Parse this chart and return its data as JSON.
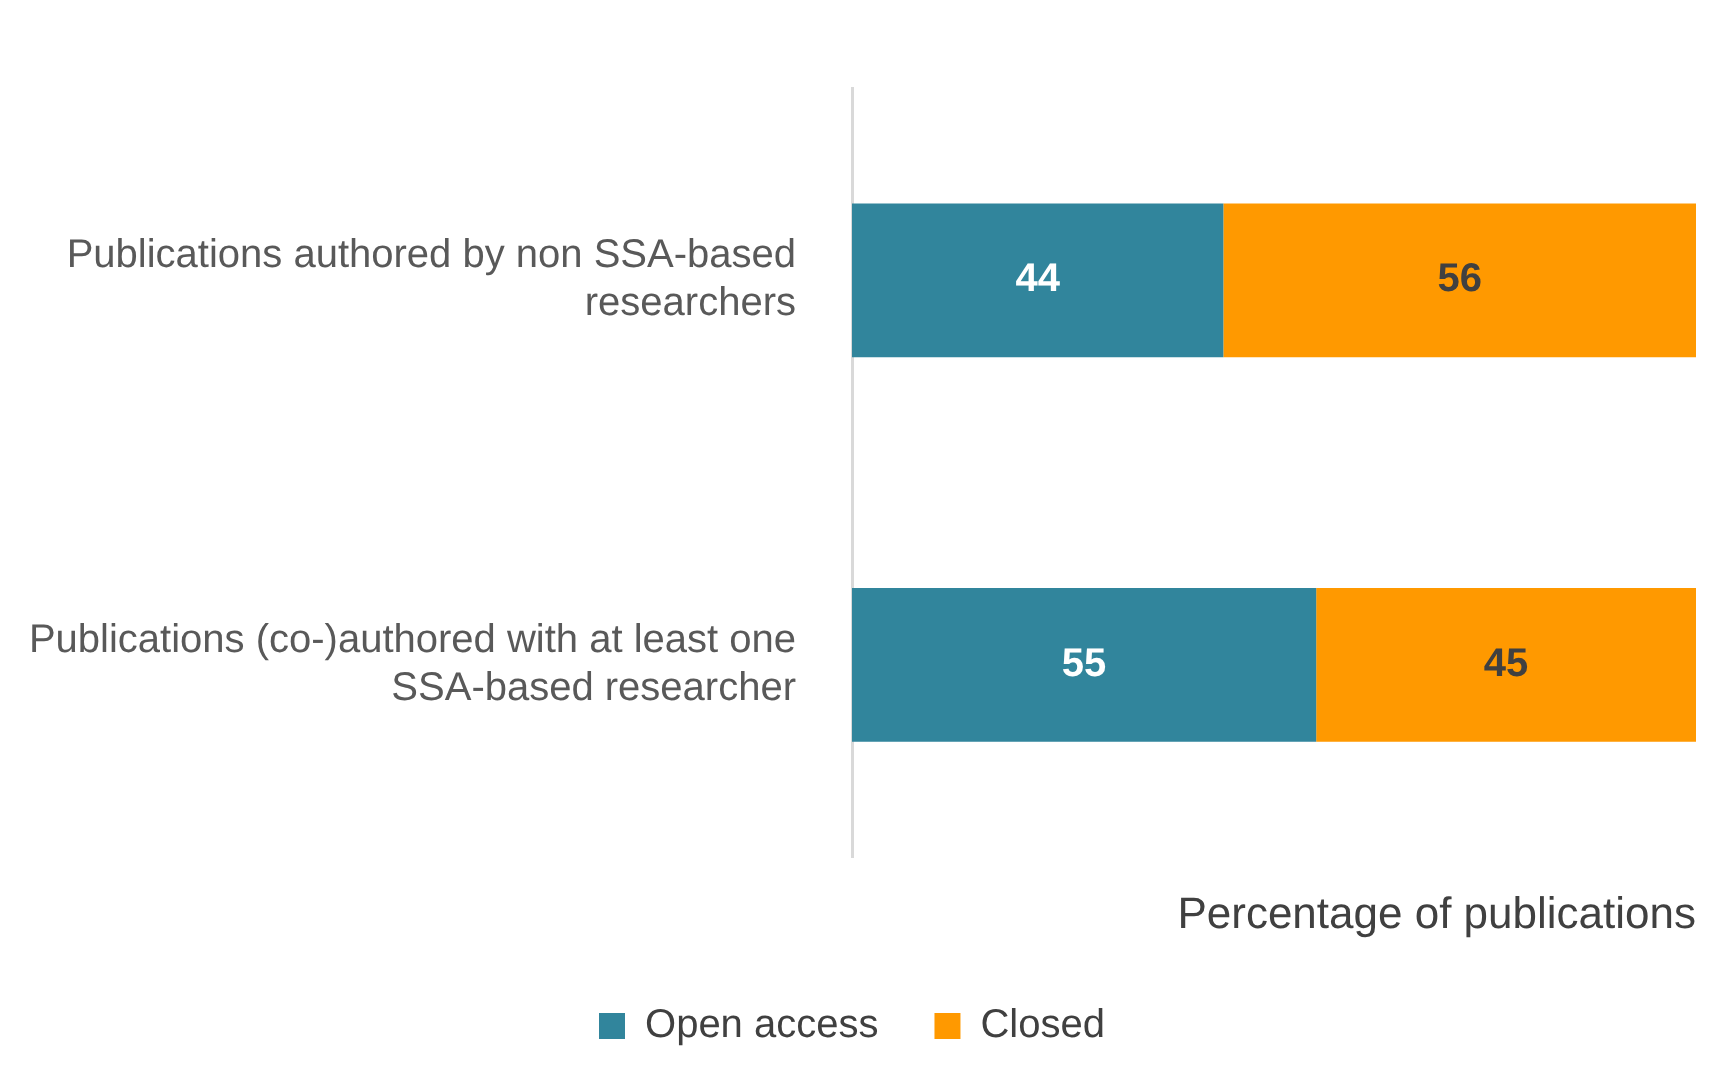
{
  "chart_data": {
    "type": "bar",
    "orientation": "horizontal",
    "stacked": true,
    "categories": [
      "Publications authored by non SSA-based researchers",
      "Publications (co-)authored with at least one SSA-based researcher"
    ],
    "series": [
      {
        "name": "Open access",
        "color": "#31859c",
        "values": [
          44,
          55
        ]
      },
      {
        "name": "Closed",
        "color": "#ff9900",
        "values": [
          56,
          45
        ]
      }
    ],
    "xlim": [
      0,
      100
    ],
    "xlabel": "Percentage of publications",
    "tick_labels": "y",
    "data_labels": true,
    "legend": "bottom"
  }
}
